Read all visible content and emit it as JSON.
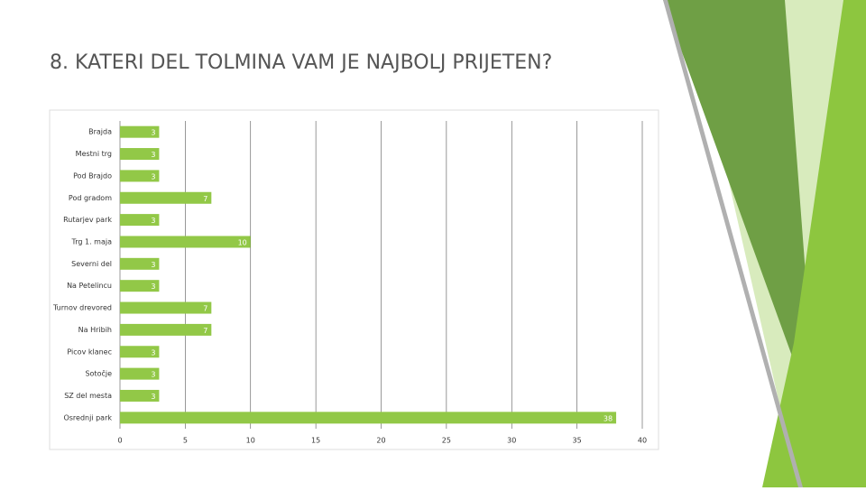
{
  "chart_data": {
    "type": "bar",
    "orientation": "horizontal",
    "title": "8. KATERI DEL TOLMINA VAM JE NAJBOLJ PRIJETEN?",
    "categories": [
      "Brajda",
      "Mestni trg",
      "Pod Brajdo",
      "Pod gradom",
      "Rutarjev park",
      "Trg 1. maja",
      "Severni del",
      "Na Petelincu",
      "Turnov drevored",
      "Na Hribih",
      "Picov klanec",
      "Sotočje",
      "SZ del mesta",
      "Osrednji park"
    ],
    "values": [
      3,
      3,
      3,
      7,
      3,
      10,
      3,
      3,
      7,
      7,
      3,
      3,
      3,
      38
    ],
    "color": "#92c847",
    "xlim": [
      0,
      40
    ],
    "xticks": [
      0,
      5,
      10,
      15,
      20,
      25,
      30,
      35,
      40
    ],
    "grid": true
  }
}
